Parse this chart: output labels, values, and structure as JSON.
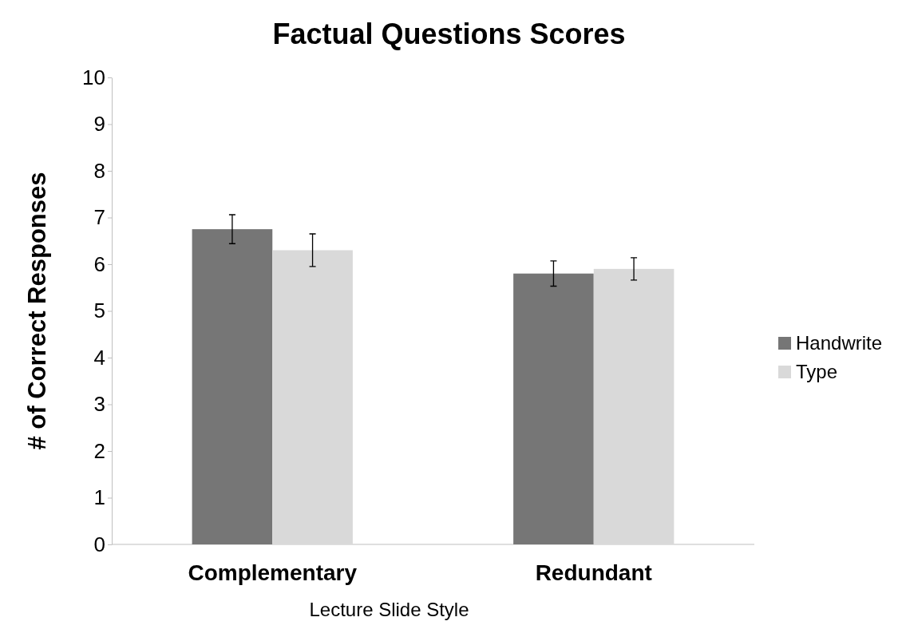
{
  "chart_data": {
    "type": "bar",
    "title": "Factual Questions Scores",
    "xlabel": "Lecture Slide Style",
    "ylabel": "# of Correct Responses",
    "categories": [
      "Complementary",
      "Redundant"
    ],
    "series": [
      {
        "name": "Handwrite",
        "color": "#767676",
        "values": [
          6.75,
          5.8
        ],
        "errors": [
          0.31,
          0.27
        ]
      },
      {
        "name": "Type",
        "color": "#d9d9d9",
        "values": [
          6.3,
          5.9
        ],
        "errors": [
          0.35,
          0.24
        ]
      }
    ],
    "ylim": [
      0,
      10
    ],
    "yticks": [
      0,
      1,
      2,
      3,
      4,
      5,
      6,
      7,
      8,
      9,
      10
    ],
    "grid": false,
    "legend": "right"
  }
}
